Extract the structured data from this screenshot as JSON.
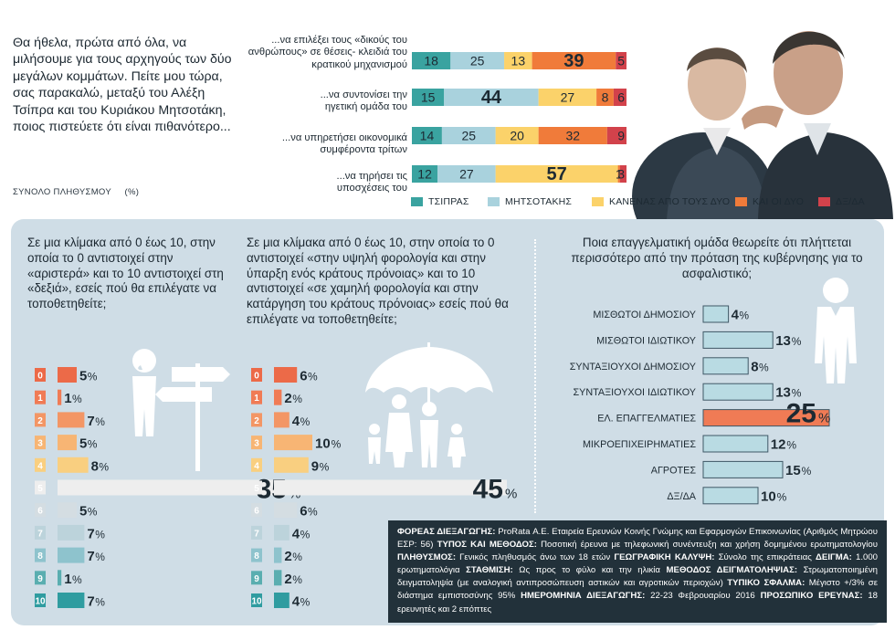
{
  "intro": {
    "text": "Θα ήθελα, πρώτα από όλα, να μιλήσουμε για τους αρχηγούς των δύο μεγάλων κομμάτων. Πείτε μου τώρα, σας παρακαλώ, μεταξύ του Αλέξη Τσίπρα και του Κυριάκου Μητσοτάκη, ποιος πιστεύετε ότι είναι πιθανότερο...",
    "total_label": "ΣΥΝΟΛΟ ΠΛΗΘΥΣΜΟΥ",
    "unit": "(%)"
  },
  "colors": {
    "tsipras": "#3aa3a0",
    "mitsotakis": "#a9d2dd",
    "neither": "#fbd26a",
    "both": "#f07b3a",
    "dkna": "#d2424b",
    "panel": "#cfdde6",
    "left_bar": "#f0846a",
    "right_bar": "#3aa3a0"
  },
  "legend": [
    "ΤΣΙΠΡΑΣ",
    "ΜΗΤΣΟΤΑΚΗΣ",
    "ΚΑΝΕΝΑΣ ΑΠΟ ΤΟΥΣ ΔΥΟ",
    "ΚΑΙ ΟΙ ΔΥΟ",
    "ΔΞ/ΔΑ"
  ],
  "chart_data": [
    {
      "type": "bar",
      "stacked": true,
      "orientation": "horizontal",
      "unit": "%",
      "categories": [
        "...να επιλέξει τους «δικούς του ανθρώπους» σε θέσεις- κλειδιά του κρατικού μηχανισμού",
        "...να συντονίσει την ηγετική ομάδα του",
        "...να υπηρετήσει οικονομικά συμφέροντα τρίτων",
        "...να τηρήσει τις υποσχέσεις του"
      ],
      "series": [
        {
          "name": "ΤΣΙΠΡΑΣ",
          "values": [
            18,
            15,
            14,
            12
          ]
        },
        {
          "name": "ΜΗΤΣΟΤΑΚΗΣ",
          "values": [
            25,
            44,
            25,
            27
          ]
        },
        {
          "name": "ΚΑΝΕΝΑΣ ΑΠΟ ΤΟΥΣ ΔΥΟ",
          "values": [
            13,
            27,
            20,
            57
          ]
        },
        {
          "name": "ΚΑΙ ΟΙ ΔΥΟ",
          "values": [
            39,
            8,
            32,
            1
          ]
        },
        {
          "name": "ΔΞ/ΔΑ",
          "values": [
            5,
            6,
            9,
            3
          ]
        }
      ],
      "legend_position": "bottom"
    },
    {
      "type": "bar",
      "orientation": "horizontal",
      "title": "Σε μια κλίμακα από 0 έως 10, στην οποία το 0 αντιστοιχεί στην «αριστερά» και το 10 αντιστοιχεί στη «δεξιά», εσείς πού θα επιλέγατε να τοποθετηθείτε;",
      "categories": [
        "0",
        "1",
        "2",
        "3",
        "4",
        "5",
        "6",
        "7",
        "8",
        "9",
        "10"
      ],
      "values": [
        5,
        1,
        7,
        5,
        8,
        35,
        5,
        7,
        7,
        1,
        7
      ],
      "unit": "%"
    },
    {
      "type": "bar",
      "orientation": "horizontal",
      "title": "Σε μια κλίμακα από 0 έως 10, στην οποία το 0 αντιστοιχεί «στην υψηλή φορολογία και στην ύπαρξη ενός κράτους πρόνοιας» και το 10 αντιστοιχεί «σε χαμηλή φορολογία και στην κατάργηση του κράτους πρόνοιας» εσείς πού θα επιλέγατε να τοποθετηθείτε;",
      "categories": [
        "0",
        "1",
        "2",
        "3",
        "4",
        "5",
        "6",
        "7",
        "8",
        "9",
        "10"
      ],
      "values": [
        6,
        2,
        4,
        10,
        9,
        45,
        6,
        4,
        2,
        2,
        4
      ],
      "unit": "%"
    },
    {
      "type": "bar",
      "orientation": "horizontal",
      "title": "Ποια επαγγελματική ομάδα θεωρείτε ότι πλήττεται περισσότερο από την πρόταση της κυβέρνησης για το ασφαλιστικό;",
      "categories": [
        "ΜΙΣΘΩΤΟΙ ΔΗΜΟΣΙΟΥ",
        "ΜΙΣΘΩΤΟΙ ΙΔΙΩΤΙΚΟΥ",
        "ΣΥΝΤΑΞΙΟΥΧΟΙ ΔΗΜΟΣΙΟΥ",
        "ΣΥΝΤΑΞΙΟΥΧΟΙ ΙΔΙΩΤΙΚΟΥ",
        "ΕΛ. ΕΠΑΓΓΕΛΜΑΤΙΕΣ",
        "ΜΙΚΡΟΕΠΙΧΕΙΡΗΜΑΤΙΕΣ",
        "ΑΓΡΟΤΕΣ",
        "ΔΞ/ΔΑ"
      ],
      "values": [
        4,
        13,
        8,
        13,
        25,
        12,
        15,
        10
      ],
      "unit": "%"
    }
  ],
  "methodology": [
    {
      "k": "ΦΟΡΕΑΣ ΔΙΕΞΑΓΩΓΗΣ:",
      "v": " ProRata Α.Ε. Εταιρεία Ερευνών Κοινής Γνώμης και Εφαρμογών Επικοινωνίας (Αριθμός Μητρώου ΕΣΡ: 56) "
    },
    {
      "k": "ΤΥΠΟΣ ΚΑΙ ΜΕΘΟΔΟΣ:",
      "v": " Ποσοτική έρευνα με τηλεφωνική συνέντευξη και χρήση δομημένου ερωτηματολογίου "
    },
    {
      "k": "ΠΛΗΘΥΣΜΟΣ:",
      "v": " Γενικός πληθυσμός άνω των 18 ετών "
    },
    {
      "k": "ΓΕΩΓΡΑΦΙΚΗ ΚΑΛΥΨΗ:",
      "v": " Σύνολο της επικράτειας "
    },
    {
      "k": "ΔΕΙΓΜΑ:",
      "v": " 1.000 ερωτηματολόγια "
    },
    {
      "k": "ΣΤΑΘΜΙΣΗ:",
      "v": " Ως προς το φύλο και την ηλικία "
    },
    {
      "k": "ΜΕΘΟΔΟΣ ΔΕΙΓΜΑΤΟΛΗΨΙΑΣ:",
      "v": " Στρωματοποιημένη δειγματοληψία (με αναλογική αντιπροσώπευση αστικών και αγροτικών περιοχών) "
    },
    {
      "k": "ΤΥΠΙΚΟ ΣΦΑΛΜΑ:",
      "v": " Μέγιστο +/3% σε διάστημα εμπιστοσύνης 95% "
    },
    {
      "k": "ΗΜΕΡΟΜΗΝΙΑ ΔΙΕΞΑΓΩΓΗΣ:",
      "v": " 22-23 Φεβρουαρίου 2016 "
    },
    {
      "k": "ΠΡΟΣΩΠΙΚΟ ΕΡΕΥΝΑΣ:",
      "v": " 18 ερευνητές και 2 επόπτες"
    }
  ]
}
